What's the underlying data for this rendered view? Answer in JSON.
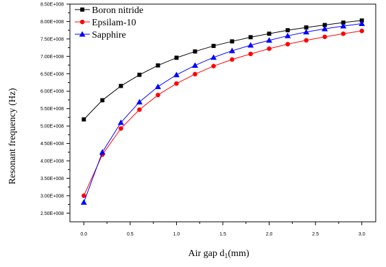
{
  "chart_data": {
    "type": "line",
    "xlabel": "Air gap  d",
    "xlabel_sub": "1",
    "xlabel_unit": "(mm)",
    "ylabel": "Resonant frequency (Hz)",
    "xlim": [
      -0.15,
      3.15
    ],
    "ylim": [
      225000000,
      850000000
    ],
    "x_ticks": [
      0.0,
      0.5,
      1.0,
      1.5,
      2.0,
      2.5,
      3.0
    ],
    "x_tick_labels": [
      "0.0",
      "0.5",
      "1.0",
      "1.5",
      "2.0",
      "2.5",
      "3.0"
    ],
    "y_ticks": [
      250000000,
      300000000,
      350000000,
      400000000,
      450000000,
      500000000,
      550000000,
      600000000,
      650000000,
      700000000,
      750000000,
      800000000,
      850000000
    ],
    "y_tick_labels": [
      "2.50E+008",
      "3.00E+008",
      "3.50E+008",
      "4.00E+008",
      "4.50E+008",
      "5.00E+008",
      "5.50E+008",
      "6.00E+008",
      "6.50E+008",
      "7.00E+008",
      "7.50E+008",
      "8.00E+008",
      "8.50E+008"
    ],
    "legend_position": "top-left",
    "grid": false,
    "x": [
      0.0,
      0.2,
      0.4,
      0.6,
      0.8,
      1.0,
      1.2,
      1.4,
      1.6,
      1.8,
      2.0,
      2.2,
      2.4,
      2.6,
      2.8,
      3.0
    ],
    "series": [
      {
        "name": "Boron nitride",
        "color": "#000000",
        "marker": "square",
        "values": [
          519000000,
          574000000,
          615000000,
          647000000,
          674000000,
          696000000,
          714000000,
          730000000,
          743000000,
          755000000,
          765000000,
          775000000,
          783000000,
          790000000,
          797000000,
          803000000
        ]
      },
      {
        "name": "Epsilam-10",
        "color": "#ff0000",
        "marker": "circle",
        "values": [
          300000000,
          418000000,
          493000000,
          547000000,
          589000000,
          622000000,
          649000000,
          672000000,
          691000000,
          707000000,
          722000000,
          735000000,
          746000000,
          756000000,
          765000000,
          773000000
        ]
      },
      {
        "name": "Sapphire",
        "color": "#0000ff",
        "marker": "triangle",
        "values": [
          281000000,
          425000000,
          510000000,
          569000000,
          613000000,
          647000000,
          674000000,
          697000000,
          716000000,
          732000000,
          746000000,
          759000000,
          770000000,
          779000000,
          787000000,
          794000000
        ]
      }
    ]
  }
}
